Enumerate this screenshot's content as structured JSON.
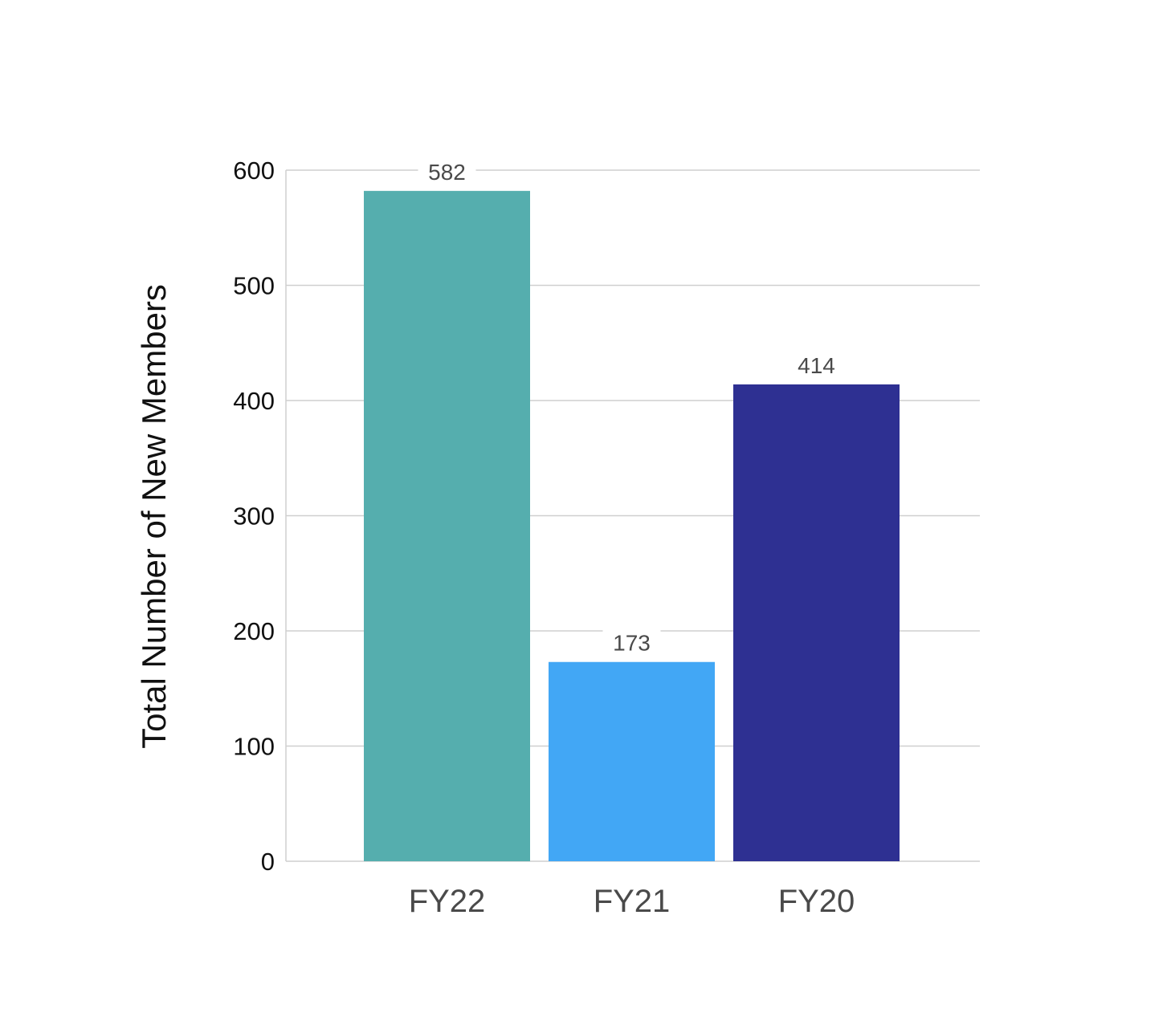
{
  "chart_data": {
    "type": "bar",
    "title": "",
    "xlabel": "",
    "ylabel": "Total Number of New Members",
    "categories": [
      "FY22",
      "FY21",
      "FY20"
    ],
    "values": [
      582,
      173,
      414
    ],
    "value_labels": [
      "582",
      "173",
      "414"
    ],
    "ylim": [
      0,
      600
    ],
    "yticks": [
      0,
      100,
      200,
      300,
      400,
      500,
      600
    ],
    "ytick_labels": [
      "0",
      "100",
      "200",
      "300",
      "400",
      "500",
      "600"
    ],
    "grid": true,
    "legend": "none",
    "colors": [
      "#55aeae",
      "#42a7f5",
      "#2e3092"
    ],
    "grid_color": "#cfcfcf"
  }
}
